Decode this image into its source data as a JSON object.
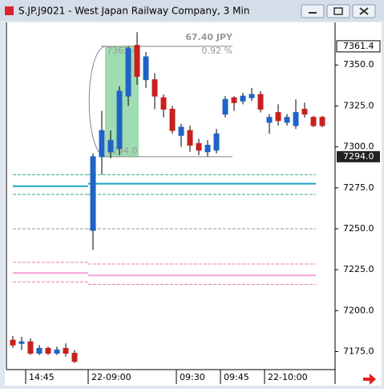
{
  "window_title": "S.JP.J9021 - West Japan Railway Company, 3 Min",
  "chart_data": {
    "type": "candlestick",
    "categories": [
      null,
      null,
      "14:45",
      null,
      null,
      null,
      null,
      null,
      "22-09:00",
      null,
      null,
      null,
      null,
      null,
      null,
      null,
      null,
      null,
      "09:30",
      null,
      null,
      null,
      null,
      "09:45",
      null,
      null,
      null,
      null,
      "22-10:00",
      null,
      null,
      null,
      null,
      null,
      null
    ],
    "open": [
      7182,
      7180,
      7181,
      7174,
      7177,
      7174,
      7177,
      7174,
      7249,
      7294,
      7297,
      7299,
      7331,
      7362,
      7341,
      7341,
      7330,
      7323,
      7307,
      7310,
      7302,
      7297,
      7298,
      7320,
      7330,
      7328,
      7330,
      7332,
      7315,
      7321,
      7315,
      7313,
      7323,
      7318,
      7318
    ],
    "high": [
      7184.6,
      7184,
      7183,
      7179,
      7178,
      7178,
      7180,
      7176,
      7296,
      7322,
      7310,
      7337,
      7361.4,
      7370,
      7358,
      7345,
      7332,
      7325,
      7314,
      7313,
      7305,
      7304,
      7311,
      7331,
      7331,
      7333,
      7336,
      7334,
      7320,
      7326,
      7320,
      7329,
      7327,
      7319,
      7319
    ],
    "low": [
      7177.3,
      7176,
      7173,
      7173,
      7173,
      7173,
      7172,
      7168,
      7237,
      7283,
      7293,
      7295,
      7325,
      7338,
      7336,
      7323,
      7318,
      7308,
      7300,
      7297,
      7295,
      7294,
      7296,
      7318,
      7322,
      7326,
      7328,
      7321,
      7308,
      7313,
      7313,
      7311,
      7318,
      7312,
      7312
    ],
    "close": [
      7179,
      7181,
      7174,
      7177,
      7174,
      7176,
      7174,
      7169,
      7294,
      7310,
      7304,
      7334,
      7360,
      7343,
      7355,
      7331,
      7323,
      7310,
      7312,
      7301,
      7298,
      7301,
      7308,
      7329,
      7327,
      7331,
      7332,
      7323,
      7318,
      7316,
      7318,
      7321,
      7320,
      7313,
      7313
    ],
    "up_color": "#1f63c6",
    "down_color": "#c8201e",
    "ylim": [
      7164,
      7376
    ],
    "yticks": [
      {
        "value": 7175,
        "label": "7175.0"
      },
      {
        "value": 7200,
        "label": "7200.0"
      },
      {
        "value": 7225,
        "label": "7225.0"
      },
      {
        "value": 7250,
        "label": "7250.0"
      },
      {
        "value": 7275,
        "label": "7275.0"
      },
      {
        "value": 7300,
        "label": "7300.0"
      },
      {
        "value": 7325,
        "label": "7325.0"
      },
      {
        "value": 7350,
        "label": "7350.0"
      }
    ],
    "overlays": [
      {
        "color": "#1aa5c8",
        "dash": false,
        "values": [
          7276,
          7277.5
        ]
      },
      {
        "color": "#2fb36a",
        "dash": true,
        "values": [
          7283,
          7283
        ]
      },
      {
        "color": "#2fb36a",
        "dash": true,
        "values": [
          7271,
          7271
        ]
      },
      {
        "color": "#9a9a9a",
        "dash": true,
        "values": [
          7250,
          7250
        ]
      },
      {
        "color": "#f07ac0",
        "dash": true,
        "values": [
          7229.5,
          7228.5
        ]
      },
      {
        "color": "#f7a0d8",
        "dash": false,
        "values": [
          7223,
          7221.5
        ]
      },
      {
        "color": "#f07ac0",
        "dash": true,
        "values": [
          7217.5,
          7216
        ]
      }
    ],
    "measure": {
      "high": 7361.4,
      "low": {
        "value": 7294,
        "label": "7294.0"
      },
      "change": {
        "value": 67.4,
        "label": "67.40 JPY"
      },
      "percent": {
        "value": 0.92,
        "label": "0.92 %"
      }
    }
  }
}
